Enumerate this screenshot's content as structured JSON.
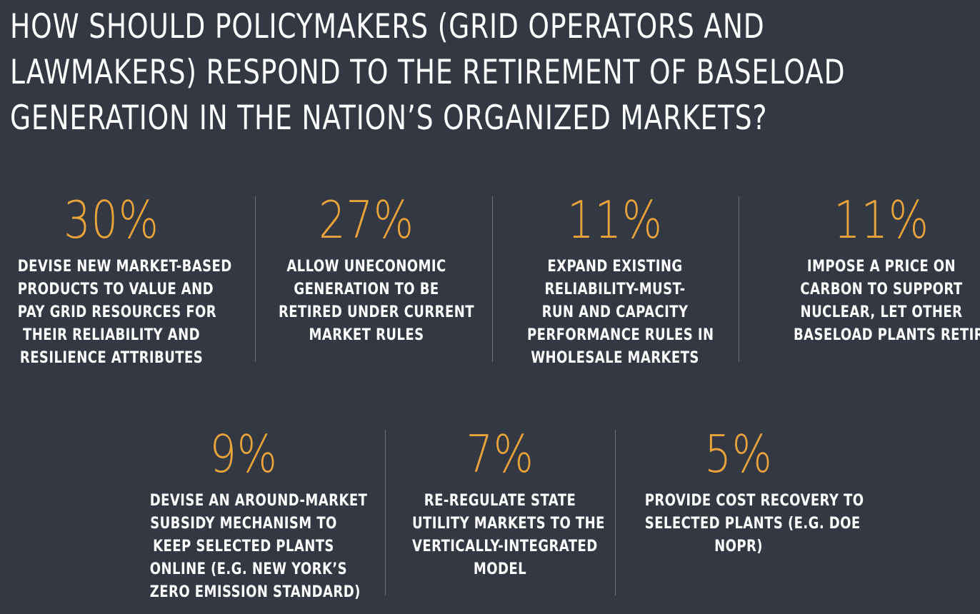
{
  "headline": {
    "lines": [
      "HOW SHOULD POLICYMAKERS (GRID OPERATORS AND",
      "LAWMAKERS) RESPOND TO THE RETIREMENT OF BASELOAD",
      "GENERATION IN THE NATION’S ORGANIZED MARKETS?"
    ]
  },
  "colors": {
    "background": "#333842",
    "accent": "#e8a33a",
    "text": "#ffffff",
    "divider": "#6b707a"
  },
  "chart_data": {
    "type": "table",
    "title": "HOW SHOULD POLICYMAKERS (GRID OPERATORS AND LAWMAKERS) RESPOND TO THE RETIREMENT OF BASELOAD GENERATION IN THE NATION’S ORGANIZED MARKETS?",
    "unit": "%",
    "rows": [
      {
        "value": 30,
        "display": "30%",
        "label_lines": [
          "DEVISE NEW MARKET-BASED",
          "PRODUCTS TO VALUE AND",
          "PAY GRID RESOURCES FOR",
          "THEIR RELIABILITY AND",
          "RESILIENCE ATTRIBUTES"
        ]
      },
      {
        "value": 27,
        "display": "27%",
        "label_lines": [
          "ALLOW UNECONOMIC",
          "GENERATION TO BE",
          "RETIRED UNDER CURRENT",
          "MARKET RULES"
        ]
      },
      {
        "value": 11,
        "display": "11%",
        "label_lines": [
          "EXPAND EXISTING",
          "RELIABILITY-MUST-",
          "RUN AND CAPACITY",
          "PERFORMANCE RULES IN",
          "WHOLESALE MARKETS"
        ]
      },
      {
        "value": 11,
        "display": "11%",
        "label_lines": [
          "IMPOSE A PRICE ON",
          "CARBON TO SUPPORT",
          "NUCLEAR, LET OTHER",
          "BASELOAD PLANTS RETIRE"
        ]
      },
      {
        "value": 9,
        "display": "9%",
        "label_lines": [
          "DEVISE AN AROUND-MARKET",
          "SUBSIDY MECHANISM TO",
          "KEEP SELECTED PLANTS",
          "ONLINE (E.G. NEW YORK’S",
          "ZERO EMISSION STANDARD)"
        ]
      },
      {
        "value": 7,
        "display": "7%",
        "label_lines": [
          "RE-REGULATE STATE",
          "UTILITY MARKETS TO THE",
          "VERTICALLY-INTEGRATED",
          "MODEL"
        ]
      },
      {
        "value": 5,
        "display": "5%",
        "label_lines": [
          "PROVIDE COST RECOVERY TO",
          "SELECTED PLANTS (E.G. DOE",
          "NOPR)"
        ]
      }
    ]
  }
}
